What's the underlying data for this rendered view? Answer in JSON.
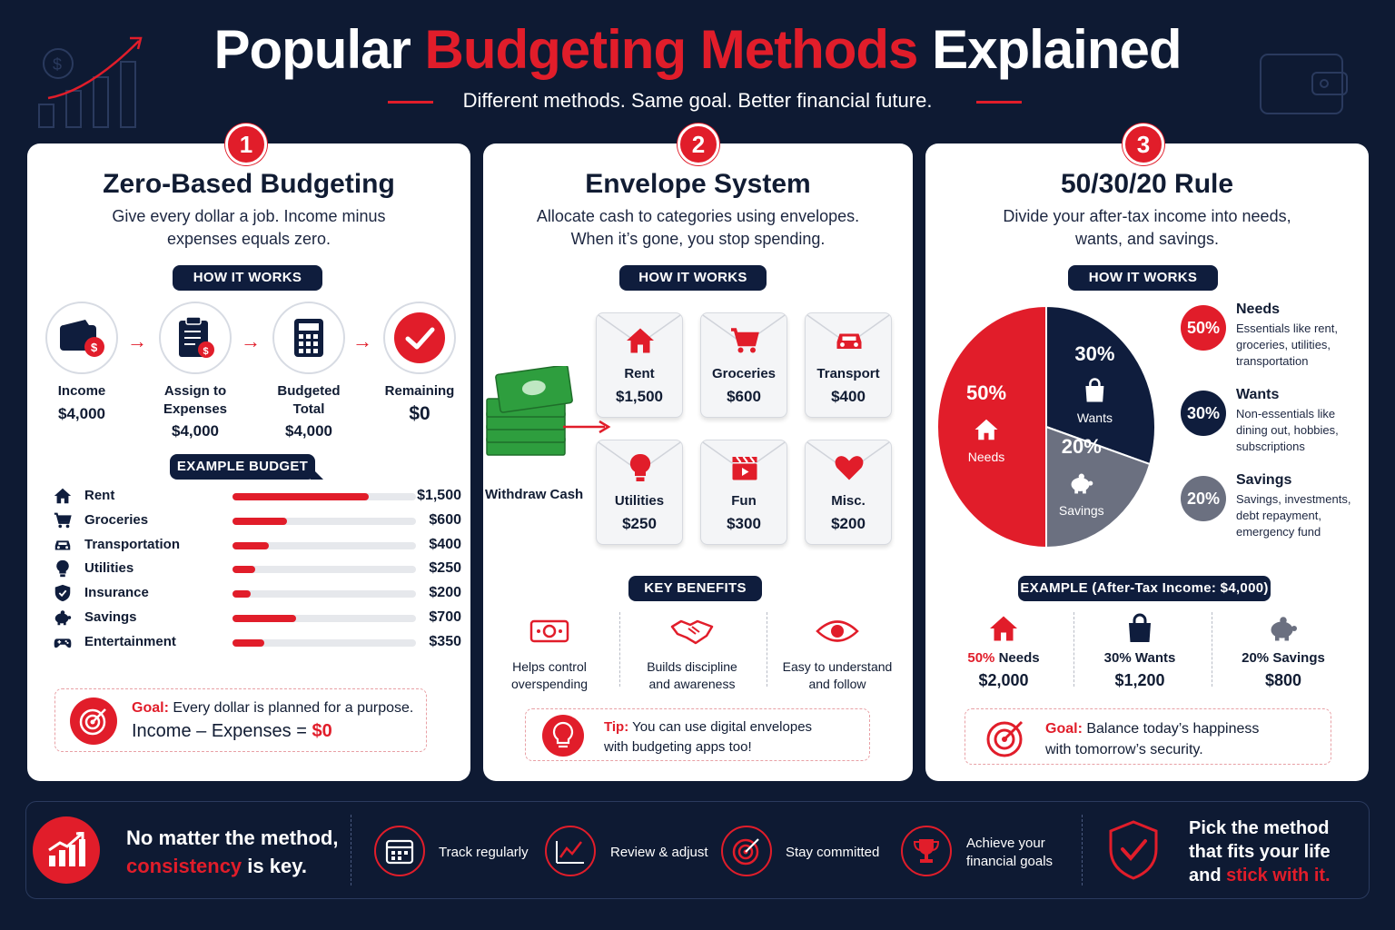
{
  "header": {
    "title_part1": "Popular ",
    "title_part2": "Budgeting Methods",
    "title_part3": " Explained",
    "subtitle": "Different methods. Same goal. Better financial future."
  },
  "zero_based": {
    "number": "1",
    "title": "Zero-Based Budgeting",
    "desc_line1": "Give every dollar a job. Income minus",
    "desc_line2": "expenses equals zero.",
    "how_label": "HOW IT WORKS",
    "steps": [
      {
        "label": "Income",
        "label2": "",
        "value": "$4,000",
        "icon": "wallet-icon"
      },
      {
        "label": "Assign to",
        "label2": "Expenses",
        "value": "$4,000",
        "icon": "clipboard-icon"
      },
      {
        "label": "Budgeted",
        "label2": "Total",
        "value": "$4,000",
        "icon": "calculator-icon"
      },
      {
        "label": "Remaining",
        "label2": "",
        "value": "$0",
        "icon": "check-icon"
      }
    ],
    "example_label": "EXAMPLE BUDGET",
    "budget": [
      {
        "label": "Rent",
        "amount": "$1,500",
        "value": 1500,
        "icon": "home-icon"
      },
      {
        "label": "Groceries",
        "amount": "$600",
        "value": 600,
        "icon": "cart-icon"
      },
      {
        "label": "Transportation",
        "amount": "$400",
        "value": 400,
        "icon": "car-icon"
      },
      {
        "label": "Utilities",
        "amount": "$250",
        "value": 250,
        "icon": "bulb-icon"
      },
      {
        "label": "Insurance",
        "amount": "$200",
        "value": 200,
        "icon": "shield-icon"
      },
      {
        "label": "Savings",
        "amount": "$700",
        "value": 700,
        "icon": "piggy-icon"
      },
      {
        "label": "Entertainment",
        "amount": "$350",
        "value": 350,
        "icon": "gamepad-icon"
      }
    ],
    "goal_label": "Goal:",
    "goal_text": " Every dollar is planned for a purpose.",
    "goal_formula": "Income – Expenses = ",
    "goal_result": "$0"
  },
  "envelope": {
    "number": "2",
    "title": "Envelope System",
    "desc_line1": "Allocate cash to categories using envelopes.",
    "desc_line2": "When it’s gone, you stop spending.",
    "how_label": "HOW IT WORKS",
    "cash_label": "Withdraw Cash",
    "envelopes": [
      {
        "label": "Rent",
        "value": "$1,500",
        "icon": "home-icon"
      },
      {
        "label": "Groceries",
        "value": "$600",
        "icon": "cart-icon"
      },
      {
        "label": "Transport",
        "value": "$400",
        "icon": "car-icon"
      },
      {
        "label": "Utilities",
        "value": "$250",
        "icon": "bulb-icon"
      },
      {
        "label": "Fun",
        "value": "$300",
        "icon": "clapper-icon"
      },
      {
        "label": "Misc.",
        "value": "$200",
        "icon": "heart-icon"
      }
    ],
    "benefits_label": "KEY BENEFITS",
    "benefits": [
      {
        "line1": "Helps control",
        "line2": "overspending",
        "icon": "money-icon"
      },
      {
        "line1": "Builds discipline",
        "line2": "and awareness",
        "icon": "handshake-icon"
      },
      {
        "line1": "Easy to understand",
        "line2": "and follow",
        "icon": "eye-icon"
      }
    ],
    "tip_label": "Tip:",
    "tip_line1": " You can use digital envelopes",
    "tip_line2": "with budgeting apps too!"
  },
  "rule": {
    "number": "3",
    "title": "50/30/20 Rule",
    "desc_line1": "Divide your after-tax income into needs,",
    "desc_line2": "wants, and savings.",
    "how_label": "HOW IT WORKS",
    "pie": [
      {
        "name": "Needs",
        "pct_label": "50%",
        "value": 50,
        "color": "#e11d2a"
      },
      {
        "name": "Wants",
        "pct_label": "30%",
        "value": 30,
        "color": "#0f1d3d"
      },
      {
        "name": "Savings",
        "pct_label": "20%",
        "value": 20,
        "color": "#6b7080"
      }
    ],
    "legend": [
      {
        "pct": "50%",
        "title": "Needs",
        "d1": "Essentials like rent,",
        "d2": "groceries, utilities,",
        "d3": "transportation",
        "color": "#e11d2a"
      },
      {
        "pct": "30%",
        "title": "Wants",
        "d1": "Non-essentials like",
        "d2": "dining out, hobbies,",
        "d3": "subscriptions",
        "color": "#0f1d3d"
      },
      {
        "pct": "20%",
        "title": "Savings",
        "d1": "Savings, investments,",
        "d2": "debt repayment,",
        "d3": "emergency fund",
        "color": "#6b7080"
      }
    ],
    "example_label": "EXAMPLE (After-Tax Income: $4,000)",
    "examples": [
      {
        "label_pct": "50%",
        "label_name": " Needs",
        "value": "$2,000",
        "icon": "home-icon",
        "color": "#e11d2a"
      },
      {
        "label_pct": "30%",
        "label_name": " Wants",
        "value": "$1,200",
        "icon": "bag-icon",
        "color": "#0f1d3d"
      },
      {
        "label_pct": "20%",
        "label_name": " Savings",
        "value": "$800",
        "icon": "piggy-icon",
        "color": "#6b7080"
      }
    ],
    "goal_label": "Goal:",
    "goal_line1": " Balance today’s happiness",
    "goal_line2": "with tomorrow’s security."
  },
  "footer": {
    "lead_line1": "No matter the method,",
    "lead_red": "consistency",
    "lead_rest": " is key.",
    "items": [
      {
        "line1": "Track regularly",
        "line2": "",
        "icon": "calendar-icon"
      },
      {
        "line1": "Review & adjust",
        "line2": "",
        "icon": "chart-icon"
      },
      {
        "line1": "Stay committed",
        "line2": "",
        "icon": "target-icon"
      },
      {
        "line1": "Achieve your",
        "line2": "financial goals",
        "icon": "trophy-icon"
      }
    ],
    "close_line1": "Pick the method",
    "close_line2": "that fits your life",
    "close_line3a": "and ",
    "close_line3b": "stick with it."
  }
}
